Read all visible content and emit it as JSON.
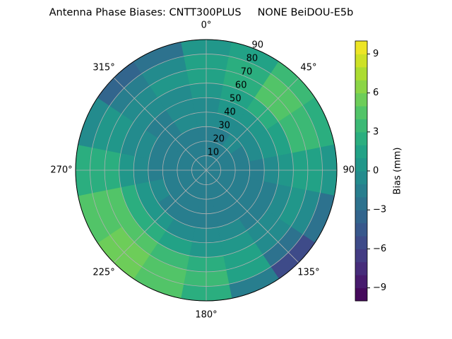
{
  "chart_data": {
    "type": "polar-contour",
    "title": "Antenna Phase Biases: CNTT300PLUS     NONE BeiDOU-E5b",
    "colorbar_label": "Bias (mm)",
    "colormap": "viridis",
    "clim": [
      -10,
      10
    ],
    "cticks": [
      {
        "value": -9,
        "label": "−9"
      },
      {
        "value": -6,
        "label": "−6"
      },
      {
        "value": -3,
        "label": "−3"
      },
      0,
      3,
      6,
      9
    ],
    "rlim": [
      0,
      90
    ],
    "rticks": [
      10,
      20,
      30,
      40,
      50,
      60,
      70,
      80,
      90
    ],
    "thetaticks": [
      {
        "value": 0,
        "label": "0°"
      },
      {
        "value": 45,
        "label": "45°"
      },
      {
        "value": 90,
        "label": "90°"
      },
      {
        "value": 135,
        "label": "135°"
      },
      {
        "value": 180,
        "label": "180°"
      },
      {
        "value": 225,
        "label": "225°"
      },
      {
        "value": 270,
        "label": "270°"
      },
      {
        "value": 315,
        "label": "315°"
      }
    ],
    "azimuth": [
      0,
      22.5,
      45,
      67.5,
      90,
      112.5,
      135,
      157.5,
      180,
      202.5,
      225,
      247.5,
      270,
      292.5,
      315,
      337.5
    ],
    "values": [
      [
        -2,
        -2,
        -2,
        -1,
        -1,
        0,
        1,
        1,
        0
      ],
      [
        -2,
        -2,
        -2,
        -1,
        0,
        1,
        2,
        2,
        1
      ],
      [
        -2,
        -2,
        -1,
        -1,
        0,
        2,
        4,
        4,
        3
      ],
      [
        -2,
        -2,
        -2,
        -1,
        0,
        1,
        3,
        3,
        2
      ],
      [
        -2,
        -2,
        -2,
        -2,
        -1,
        0,
        1,
        1,
        0
      ],
      [
        -2,
        -2,
        -2,
        -2,
        -2,
        -1,
        0,
        -1,
        -3
      ],
      [
        -2,
        -2,
        -2,
        -2,
        -2,
        -1,
        -1,
        -3,
        -6
      ],
      [
        -2,
        -2,
        -2,
        -2,
        -1,
        0,
        1,
        1,
        -2
      ],
      [
        -2,
        -2,
        -2,
        -2,
        -1,
        0,
        2,
        3,
        2
      ],
      [
        -2,
        -2,
        -2,
        -2,
        -1,
        1,
        3,
        4,
        4
      ],
      [
        -2,
        -2,
        -2,
        -2,
        0,
        2,
        4,
        5,
        5
      ],
      [
        -2,
        -2,
        -2,
        -1,
        0,
        2,
        4,
        4,
        4
      ],
      [
        -2,
        -2,
        -2,
        -2,
        -1,
        0,
        2,
        2,
        2
      ],
      [
        -2,
        -2,
        -2,
        -2,
        -1,
        -1,
        0,
        0,
        -1
      ],
      [
        -2,
        -2,
        -2,
        -2,
        -2,
        -1,
        -1,
        -2,
        -4
      ],
      [
        -2,
        -2,
        -2,
        -1,
        -1,
        -1,
        0,
        -1,
        -3
      ]
    ]
  }
}
